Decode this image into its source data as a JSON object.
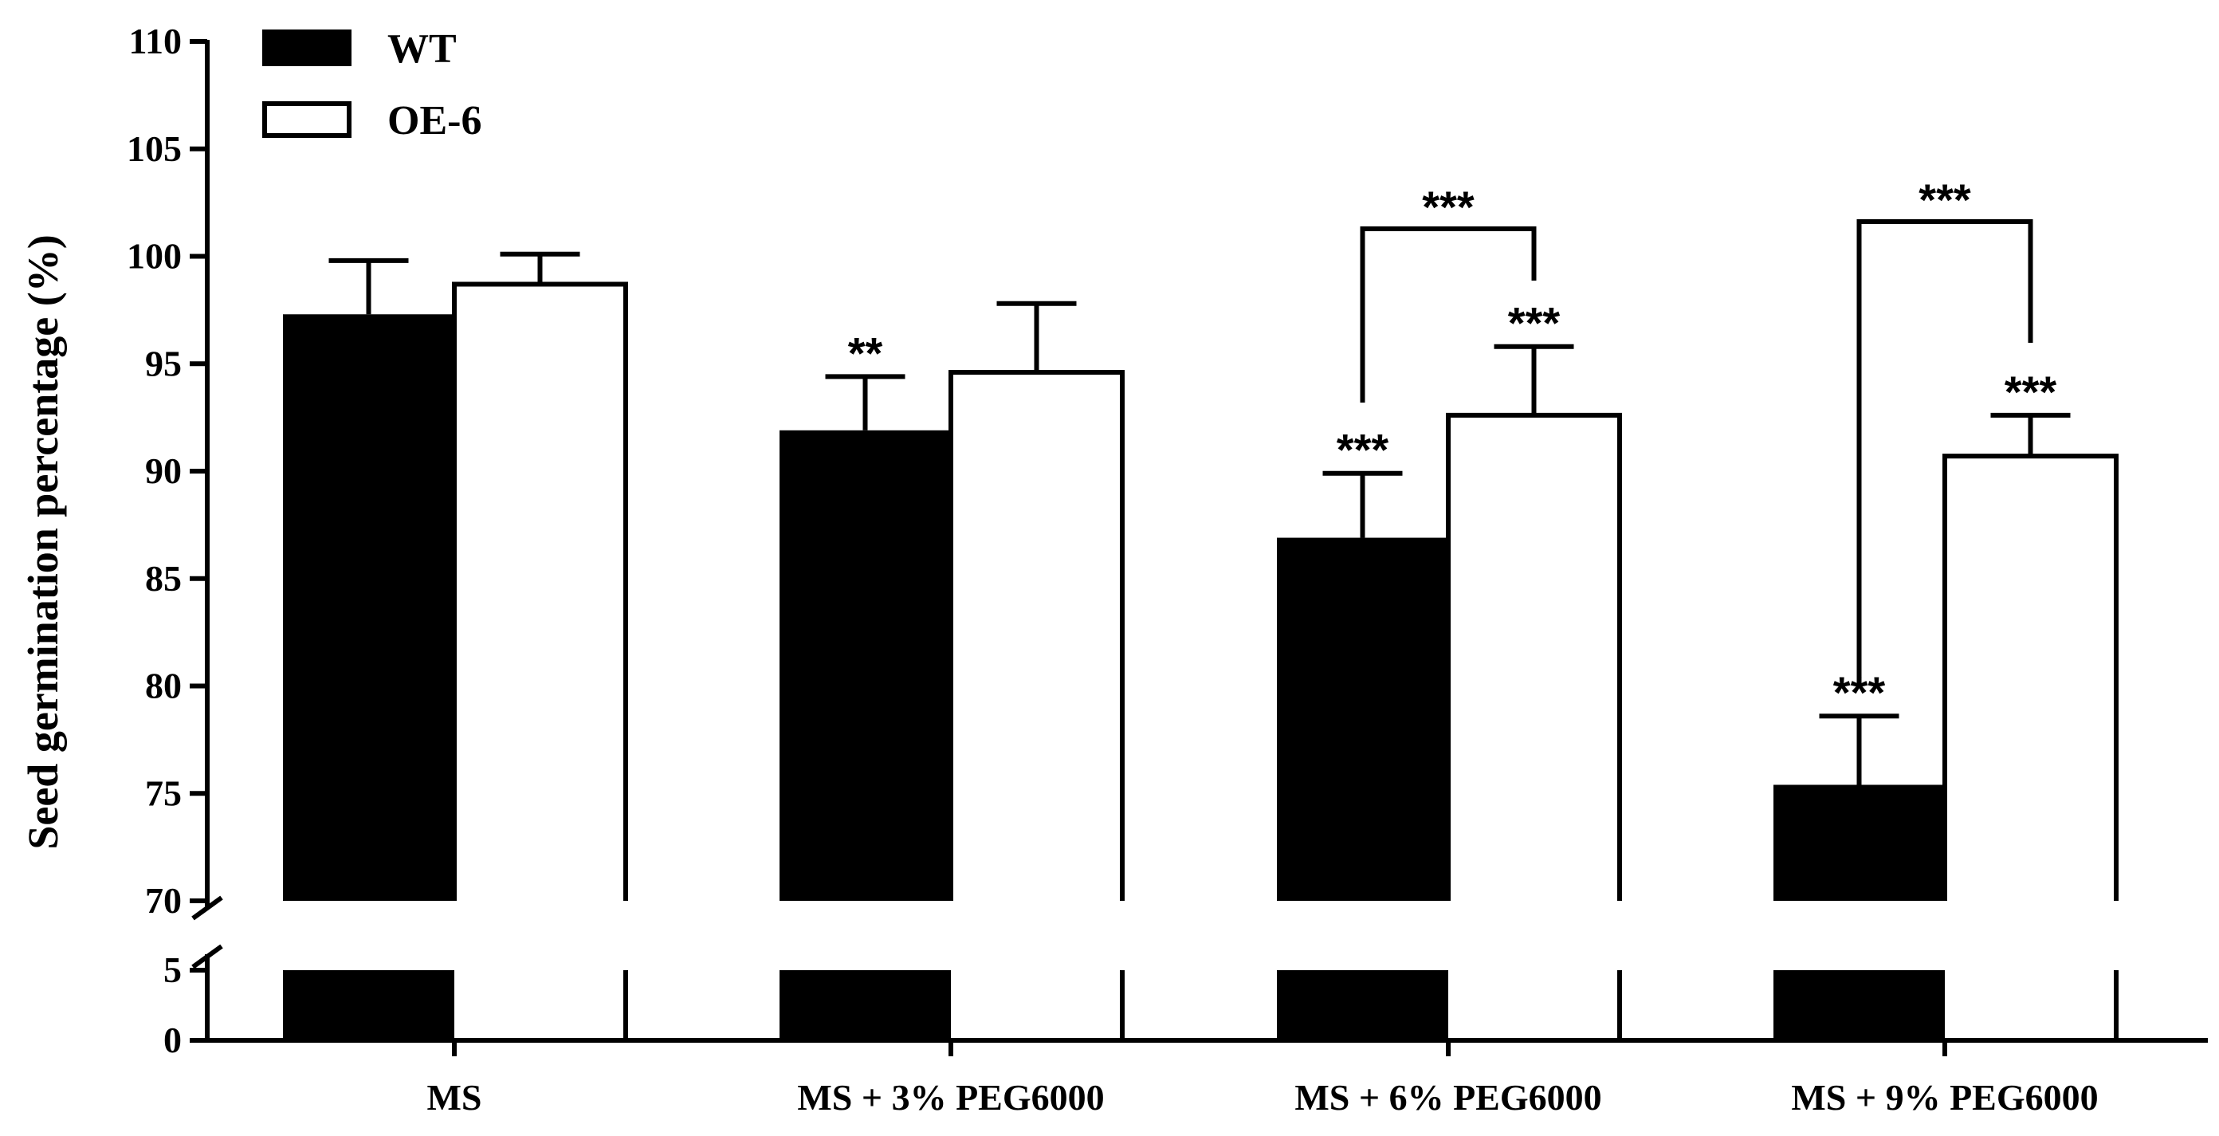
{
  "chart_data": {
    "type": "bar",
    "title": "",
    "xlabel": "",
    "ylabel": "Seed germination percentage (%)",
    "ylim": [
      0,
      110
    ],
    "y_axis_break": [
      5,
      70
    ],
    "yticks_lower": [
      "0",
      "5"
    ],
    "yticks_upper": [
      "70",
      "75",
      "80",
      "85",
      "90",
      "95",
      "100",
      "105",
      "110"
    ],
    "categories": [
      "MS",
      "MS + 3% PEG6000",
      "MS + 6% PEG6000",
      "MS + 9% PEG6000"
    ],
    "legend_position": "top-left",
    "series": [
      {
        "name": "WT",
        "color": "#000000",
        "fill": "filled",
        "values": [
          97.3,
          91.9,
          86.9,
          75.4
        ],
        "errors": [
          2.5,
          2.5,
          3.0,
          3.2
        ],
        "significance": [
          "",
          "**",
          "***",
          "***"
        ]
      },
      {
        "name": "OE-6",
        "color": "#ffffff",
        "fill": "open",
        "values": [
          98.7,
          94.6,
          92.6,
          90.7
        ],
        "errors": [
          1.4,
          3.2,
          3.2,
          1.9
        ],
        "significance": [
          "",
          "",
          "***",
          "***"
        ]
      }
    ],
    "comparisons": [
      {
        "category": "MS + 6% PEG6000",
        "label": "***"
      },
      {
        "category": "MS + 9% PEG6000",
        "label": "***"
      }
    ]
  }
}
